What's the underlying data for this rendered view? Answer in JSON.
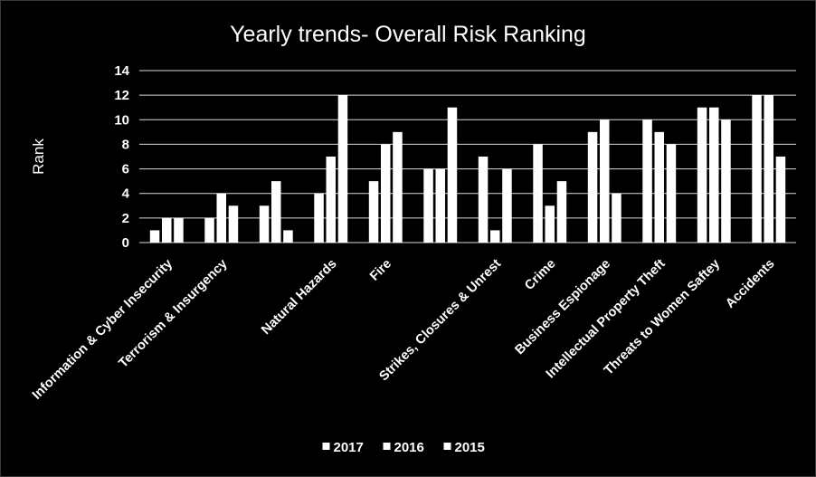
{
  "chart_data": {
    "type": "bar",
    "title": "Yearly trends- Overall Risk Ranking",
    "xlabel": "",
    "ylabel": "Rank",
    "ylim": [
      0,
      14
    ],
    "yticks": [
      0,
      2,
      4,
      6,
      8,
      10,
      12,
      14
    ],
    "grid": true,
    "legend_position": "bottom",
    "categories": [
      "Information & Cyber Insecurity",
      "Terrorism & Insurgency",
      "",
      "Natural Hazards",
      "Fire",
      "",
      "Strikes, Closures & Unrest",
      "Crime",
      "Business Espionage",
      "Intellectual Property Theft",
      "Threats to Women Saftey",
      "Accidents"
    ],
    "series": [
      {
        "name": "2017",
        "color": "#ffffff",
        "values": [
          1,
          2,
          3,
          4,
          5,
          6,
          7,
          8,
          9,
          10,
          11,
          12
        ]
      },
      {
        "name": "2016",
        "color": "#ffffff",
        "values": [
          2,
          4,
          5,
          7,
          8,
          6,
          1,
          3,
          10,
          9,
          11,
          12
        ]
      },
      {
        "name": "2015",
        "color": "#ffffff",
        "values": [
          2,
          3,
          1,
          12,
          9,
          11,
          6,
          5,
          4,
          8,
          10,
          7
        ]
      }
    ]
  }
}
